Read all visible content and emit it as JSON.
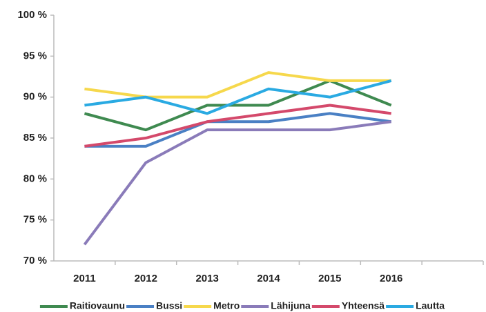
{
  "chart_data": {
    "type": "line",
    "categories": [
      "2011",
      "2012",
      "2013",
      "2014",
      "2015",
      "2016",
      null
    ],
    "series": [
      {
        "name": "Raitiovaunu",
        "color": "#3f8a50",
        "values": [
          88,
          86,
          89,
          89,
          92,
          89,
          null
        ]
      },
      {
        "name": "Bussi",
        "color": "#4a80c4",
        "values": [
          84,
          84,
          87,
          87,
          88,
          87,
          null
        ]
      },
      {
        "name": "Metro",
        "color": "#f6d84c",
        "values": [
          91,
          90,
          90,
          93,
          92,
          92,
          null
        ]
      },
      {
        "name": "Lähijuna",
        "color": "#8a7bb9",
        "values": [
          72,
          82,
          86,
          86,
          86,
          87,
          null
        ]
      },
      {
        "name": "Yhteensä",
        "color": "#d4496b",
        "values": [
          84,
          85,
          87,
          88,
          89,
          88,
          null
        ]
      },
      {
        "name": "Lautta",
        "color": "#2aaae2",
        "values": [
          89,
          90,
          88,
          91,
          90,
          92,
          null
        ]
      }
    ],
    "ylim": [
      70,
      100
    ],
    "yticks": [
      {
        "value": 70,
        "label": "70 %"
      },
      {
        "value": 75,
        "label": "75 %"
      },
      {
        "value": 80,
        "label": "80 %"
      },
      {
        "value": 85,
        "label": "85 %"
      },
      {
        "value": 90,
        "label": "90 %"
      },
      {
        "value": 95,
        "label": "95 %"
      },
      {
        "value": 100,
        "label": "100 %"
      }
    ],
    "grid": false,
    "legend": "bottom"
  }
}
